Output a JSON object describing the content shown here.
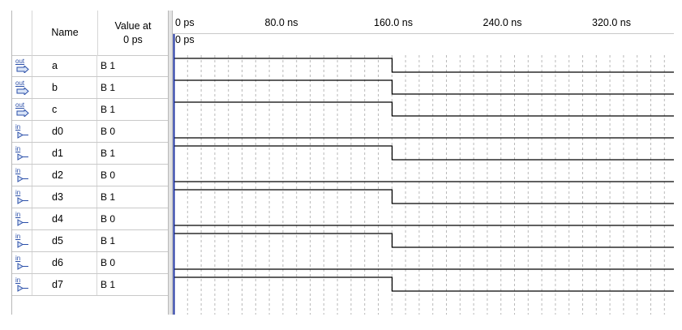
{
  "header": {
    "name": "Name",
    "value_at": "Value at\n0 ps"
  },
  "signals": [
    {
      "dir": "out",
      "name": "a",
      "value": "B 1"
    },
    {
      "dir": "out",
      "name": "b",
      "value": "B 1"
    },
    {
      "dir": "out",
      "name": "c",
      "value": "B 1"
    },
    {
      "dir": "in",
      "name": "d0",
      "value": "B 0"
    },
    {
      "dir": "in",
      "name": "d1",
      "value": "B 1"
    },
    {
      "dir": "in",
      "name": "d2",
      "value": "B 0"
    },
    {
      "dir": "in",
      "name": "d3",
      "value": "B 1"
    },
    {
      "dir": "in",
      "name": "d4",
      "value": "B 0"
    },
    {
      "dir": "in",
      "name": "d5",
      "value": "B 1"
    },
    {
      "dir": "in",
      "name": "d6",
      "value": "B 0"
    },
    {
      "dir": "in",
      "name": "d7",
      "value": "B 1"
    }
  ],
  "timeline": {
    "ticks": [
      "0 ps",
      "80.0 ns",
      "160.0 ns",
      "240.0 ns",
      "320.0 ns"
    ],
    "cursor_label": "0 ps"
  },
  "waveforms": {
    "transition_ns": 160,
    "span_ns": 368
  },
  "colors": {
    "cursor": "#1a2f9e",
    "wave": "#000000",
    "grid": "#b9b9b9",
    "pin_icon": "#2b4fa8"
  }
}
